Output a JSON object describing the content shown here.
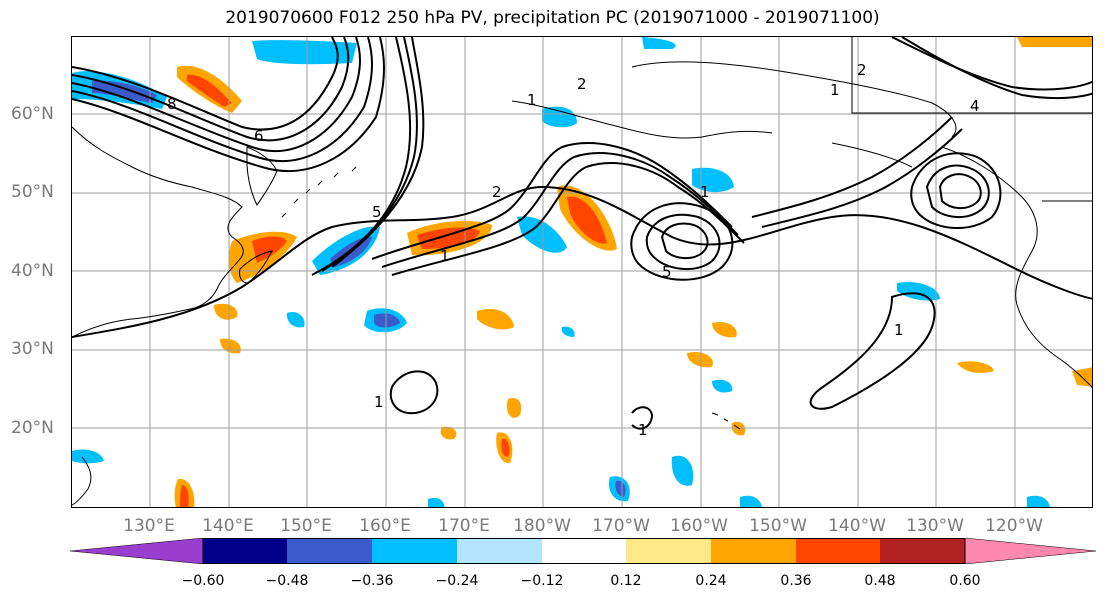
{
  "title": "2019070600 F012 250 hPa PV, precipitation PC (2019071000 - 2019071100)",
  "lat_labels": [
    "60°N",
    "50°N",
    "40°N",
    "30°N",
    "20°N"
  ],
  "lon_labels": [
    "130°E",
    "140°E",
    "150°E",
    "160°E",
    "170°E",
    "180°W",
    "170°W",
    "160°W",
    "150°W",
    "140°W",
    "130°W",
    "120°W"
  ],
  "colorbar": {
    "colors": [
      "#9a3ecf",
      "#00008b",
      "#3a5bcb",
      "#00bfff",
      "#b2e4fc",
      "#ffffff",
      "#ffe888",
      "#ffa500",
      "#ff4500",
      "#b22222",
      "#ff88b0"
    ],
    "tick_labels": [
      "−0.60",
      "−0.48",
      "−0.36",
      "−0.24",
      "−0.12",
      "0.12",
      "0.24",
      "0.36",
      "0.48",
      "0.60"
    ]
  },
  "contour_labels": [
    "1",
    "2",
    "6",
    "8",
    "1",
    "2",
    "4",
    "5",
    "1",
    "1",
    "1",
    "2",
    "1",
    "5",
    "1"
  ],
  "colors": {
    "grid": "#9e9e9e",
    "coast": "#000000",
    "contour": "#000000",
    "axis_label": "#7a7a7a"
  }
}
